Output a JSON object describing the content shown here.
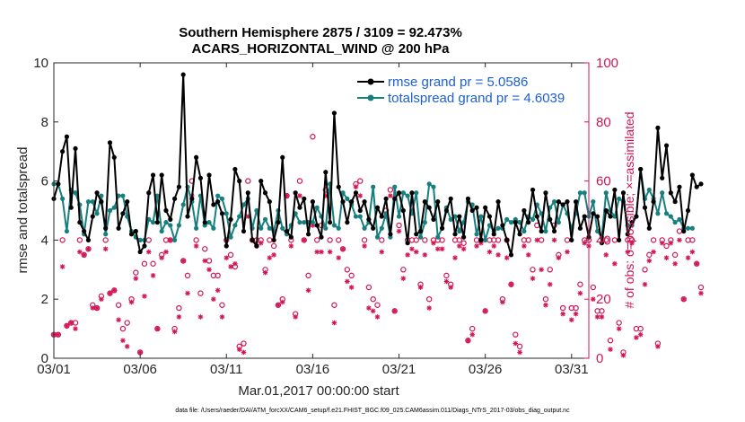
{
  "chart_data": {
    "type": "line",
    "title_line1": "Southern Hemisphere 2875 / 3109 = 92.473%",
    "title_line2": "ACARS_HORIZONTAL_WIND @ 200 hPa",
    "xlabel": "Mar.01,2017 00:00:00 start",
    "ylabel_left": "rmse and totalspread",
    "ylabel_right": "# of obs: o=possible; ×=assimilated",
    "xlim": [
      1,
      32
    ],
    "ylim_left": [
      0,
      10
    ],
    "ylim_right": [
      0,
      100
    ],
    "x_ticks": [
      {
        "value": 1,
        "label": "03/01"
      },
      {
        "value": 6,
        "label": "03/06"
      },
      {
        "value": 11,
        "label": "03/11"
      },
      {
        "value": 16,
        "label": "03/16"
      },
      {
        "value": 21,
        "label": "03/21"
      },
      {
        "value": 26,
        "label": "03/26"
      },
      {
        "value": 31,
        "label": "03/31"
      }
    ],
    "y_ticks_left": [
      "0",
      "2",
      "4",
      "6",
      "8",
      "10"
    ],
    "y_ticks_right": [
      "0",
      "20",
      "40",
      "60",
      "80",
      "100"
    ],
    "legend": [
      {
        "label": "rmse grand pr = 5.0586",
        "color": "#000000"
      },
      {
        "label": "totalspread grand pr = 4.6039",
        "color": "#17807e"
      }
    ],
    "time_step": 0.25,
    "series": [
      {
        "name": "rmse",
        "color": "#000000",
        "values": [
          5.4,
          5.9,
          7.0,
          7.5,
          5.1,
          7.1,
          4.6,
          4.3,
          4.0,
          4.8,
          5.6,
          5.3,
          4.4,
          7.3,
          6.8,
          4.4,
          4.9,
          5.3,
          4.2,
          4.3,
          3.6,
          3.8,
          5.6,
          6.2,
          4.6,
          6.2,
          5.0,
          4.7,
          5.4,
          5.8,
          9.6,
          4.8,
          5.4,
          6.8,
          6.1,
          4.6,
          6.2,
          5.2,
          5.3,
          4.9,
          3.8,
          4.7,
          6.4,
          6.0,
          4.3,
          5.6,
          4.0,
          3.8,
          6.0,
          5.6,
          5.3,
          4.0,
          4.6,
          6.8,
          4.3,
          4.1,
          5.6,
          5.1,
          5.4,
          4.2,
          5.3,
          4.5,
          4.1,
          6.3,
          4.6,
          8.3,
          5.8,
          5.3,
          4.6,
          5.3,
          5.6,
          5.0,
          5.3,
          4.7,
          4.4,
          5.1,
          4.8,
          5.4,
          4.2,
          5.4,
          5.6,
          5.0,
          3.9,
          5.6,
          4.2,
          4.3,
          5.3,
          5.1,
          4.7,
          5.3,
          4.4,
          5.0,
          5.4,
          4.2,
          4.8,
          4.1,
          5.4,
          5.0,
          5.1,
          4.0,
          5.1,
          4.8,
          4.2,
          5.3,
          4.5,
          4.0,
          3.5,
          4.6,
          4.2,
          5.0,
          4.6,
          5.7,
          4.8,
          4.3,
          5.6,
          4.7,
          4.3,
          5.3,
          5.2,
          5.3,
          4.0,
          5.3,
          4.4,
          4.8,
          4.1,
          4.9,
          4.8,
          3.9,
          5.0,
          4.8,
          5.7,
          4.0,
          5.6,
          4.2,
          4.6,
          4.8,
          6.4,
          5.1,
          4.4,
          5.3,
          7.8,
          6.1,
          7.2,
          5.6,
          5.3,
          5.8,
          4.3,
          5.0,
          6.2,
          5.8,
          5.9
        ]
      },
      {
        "name": "totalspread",
        "color": "#17807e",
        "values": [
          5.9,
          5.9,
          5.4,
          4.3,
          5.7,
          5.6,
          5.2,
          4.2,
          5.3,
          5.3,
          4.9,
          5.5,
          4.2,
          5.0,
          5.1,
          5.5,
          5.5,
          4.8,
          4.3,
          4.1,
          4.0,
          4.0,
          4.7,
          4.6,
          5.5,
          4.3,
          4.6,
          4.5,
          4.0,
          4.5,
          5.2,
          5.8,
          5.3,
          4.4,
          5.5,
          4.5,
          4.6,
          4.4,
          5.5,
          5.4,
          4.9,
          4.1,
          4.5,
          4.8,
          5.2,
          5.4,
          4.4,
          5.0,
          4.4,
          4.7,
          4.4,
          4.3,
          5.0,
          4.4,
          4.2,
          4.5,
          4.9,
          4.6,
          4.6,
          4.6,
          4.6,
          5.1,
          4.8,
          4.4,
          5.9,
          4.5,
          4.4,
          5.6,
          5.4,
          5.2,
          4.8,
          4.8,
          4.4,
          4.6,
          5.8,
          4.1,
          4.4,
          4.9,
          4.1,
          5.8,
          4.8,
          5.6,
          5.5,
          4.9,
          5.6,
          4.1,
          4.6,
          5.9,
          5.8,
          4.1,
          4.4,
          5.1,
          4.7,
          4.8,
          4.3,
          4.6,
          5.3,
          5.2,
          4.2,
          4.8,
          4.0,
          4.5,
          4.3,
          4.4,
          4.4,
          4.7,
          4.6,
          4.7,
          4.6,
          4.3,
          4.8,
          4.7,
          5.2,
          4.9,
          4.3,
          5.1,
          5.3,
          4.6,
          5.2,
          4.9,
          4.4,
          4.9,
          5.6,
          5.6,
          4.8,
          5.3,
          4.3,
          4.1,
          5.6,
          5.0,
          4.8,
          5.4,
          5.3,
          4.5,
          4.5,
          4.8,
          6.4,
          5.4,
          5.7,
          5.4,
          4.9,
          5.6,
          4.9,
          4.8,
          4.6,
          4.7,
          4.4,
          4.4,
          4.4
        ]
      },
      {
        "name": "obs possible",
        "color": "#d11552",
        "marker": "o",
        "axis": "right",
        "values": [
          8,
          8,
          40,
          11,
          12,
          12,
          40,
          35,
          37,
          18,
          17,
          21,
          40,
          22,
          23,
          18,
          10,
          12,
          20,
          29,
          2,
          32,
          40,
          32,
          10,
          35,
          40,
          40,
          10,
          17,
          33,
          28,
          60,
          40,
          22,
          37,
          33,
          28,
          28,
          18,
          40,
          35,
          31,
          4,
          5,
          60,
          40,
          40,
          40,
          30,
          40,
          38,
          18,
          20,
          55,
          40,
          15,
          60,
          40,
          28,
          75,
          40,
          45,
          57,
          40,
          18,
          40,
          37,
          30,
          28,
          59,
          60,
          40,
          24,
          20,
          18,
          40,
          50,
          57,
          16,
          45,
          30,
          40,
          40,
          40,
          25,
          40,
          20,
          40,
          40,
          40,
          28,
          25,
          40,
          40,
          39,
          6,
          10,
          40,
          40,
          16,
          40,
          40,
          40,
          20,
          40,
          25,
          8,
          4,
          40,
          40,
          30,
          45,
          40,
          20,
          30,
          45,
          35,
          17,
          40,
          17,
          17,
          25,
          40,
          40,
          24,
          16,
          16,
          40,
          6,
          40,
          12,
          2,
          40,
          40,
          10,
          10,
          30,
          35,
          40,
          5,
          40,
          38,
          40,
          35,
          43,
          20,
          40,
          40,
          32,
          24
        ]
      },
      {
        "name": "obs assimilated",
        "color": "#d11552",
        "marker": "*",
        "axis": "right",
        "values": [
          8,
          8,
          31,
          11,
          12,
          10,
          36,
          35,
          37,
          17,
          17,
          20,
          37,
          22,
          23,
          13,
          6,
          4,
          19,
          27,
          2,
          21,
          36,
          28,
          10,
          34,
          36,
          40,
          9,
          14,
          33,
          22,
          55,
          38,
          14,
          33,
          30,
          20,
          23,
          14,
          34,
          31,
          32,
          3,
          2,
          48,
          40,
          38,
          39,
          29,
          34,
          35,
          18,
          19,
          55,
          38,
          14,
          55,
          40,
          23,
          45,
          36,
          36,
          55,
          36,
          12,
          34,
          37,
          26,
          24,
          58,
          55,
          38,
          17,
          16,
          14,
          36,
          48,
          55,
          16,
          43,
          27,
          35,
          37,
          36,
          24,
          35,
          17,
          39,
          37,
          37,
          26,
          24,
          34,
          38,
          37,
          6,
          8,
          38,
          39,
          16,
          36,
          38,
          35,
          19,
          34,
          25,
          5,
          2,
          38,
          35,
          27,
          40,
          30,
          18,
          25,
          40,
          34,
          15,
          36,
          13,
          15,
          22,
          39,
          38,
          20,
          14,
          14,
          35,
          3,
          32,
          10,
          1,
          36,
          39,
          7,
          8,
          25,
          33,
          36,
          4,
          39,
          34,
          39,
          32,
          40,
          20,
          34,
          36,
          32,
          22
        ]
      }
    ]
  },
  "footnote": "data file: /Users/raeder/DAI/ATM_forcXX/CAM6_setup/f.e21.FHIST_BGC.f09_025.CAM6assim.011/Diags_NTrS_2017-03/obs_diag_output.nc"
}
